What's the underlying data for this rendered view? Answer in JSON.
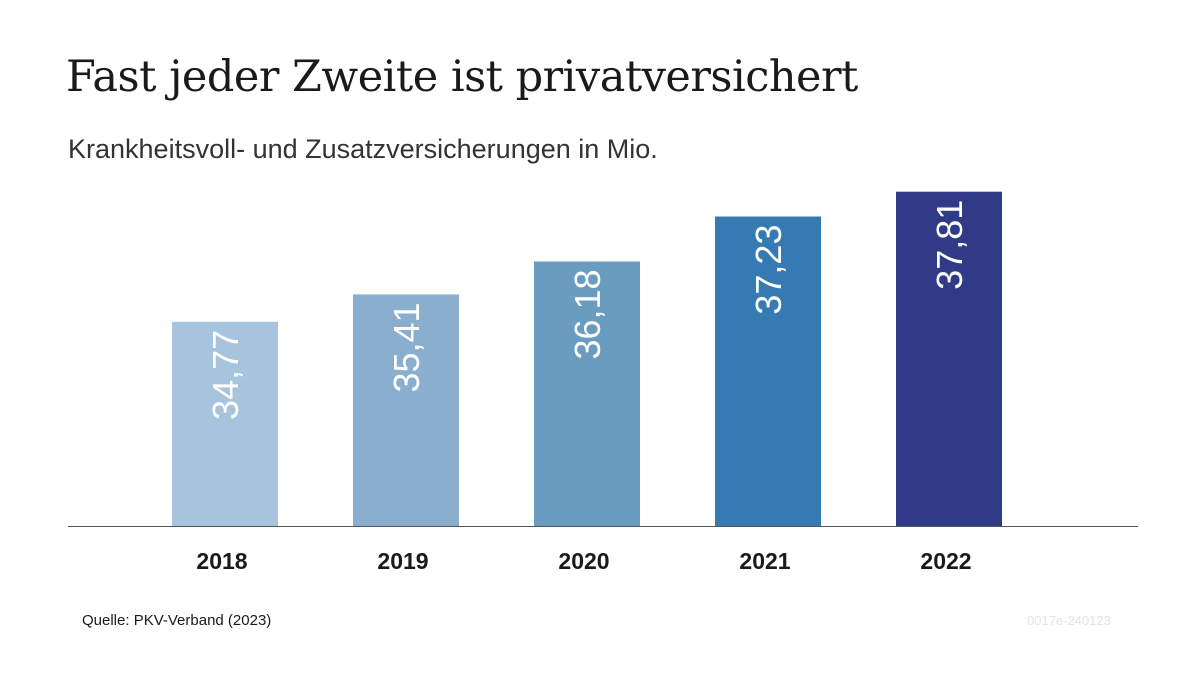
{
  "chart_data": {
    "type": "bar",
    "title": "Fast jeder Zweite ist privatversichert",
    "subtitle": "Krankheitsvoll- und Zusatzversicherungen in Mio.",
    "categories": [
      "2018",
      "2019",
      "2020",
      "2021",
      "2022"
    ],
    "values": [
      34.77,
      35.41,
      36.18,
      37.23,
      37.81
    ],
    "value_labels": [
      "34,77",
      "35,41",
      "36,18",
      "37,23",
      "37,81"
    ],
    "bar_colors": [
      "#a6c4de",
      "#8aaecd",
      "#6a9cc0",
      "#357ab2",
      "#313a87"
    ],
    "baseline_color": "#555555",
    "ylim": [
      30.0,
      38.2
    ],
    "grid": false,
    "legend": "none",
    "xlabel": "",
    "ylabel": ""
  },
  "source": "Quelle: PKV-Verband (2023)",
  "code": "0017e-240123"
}
